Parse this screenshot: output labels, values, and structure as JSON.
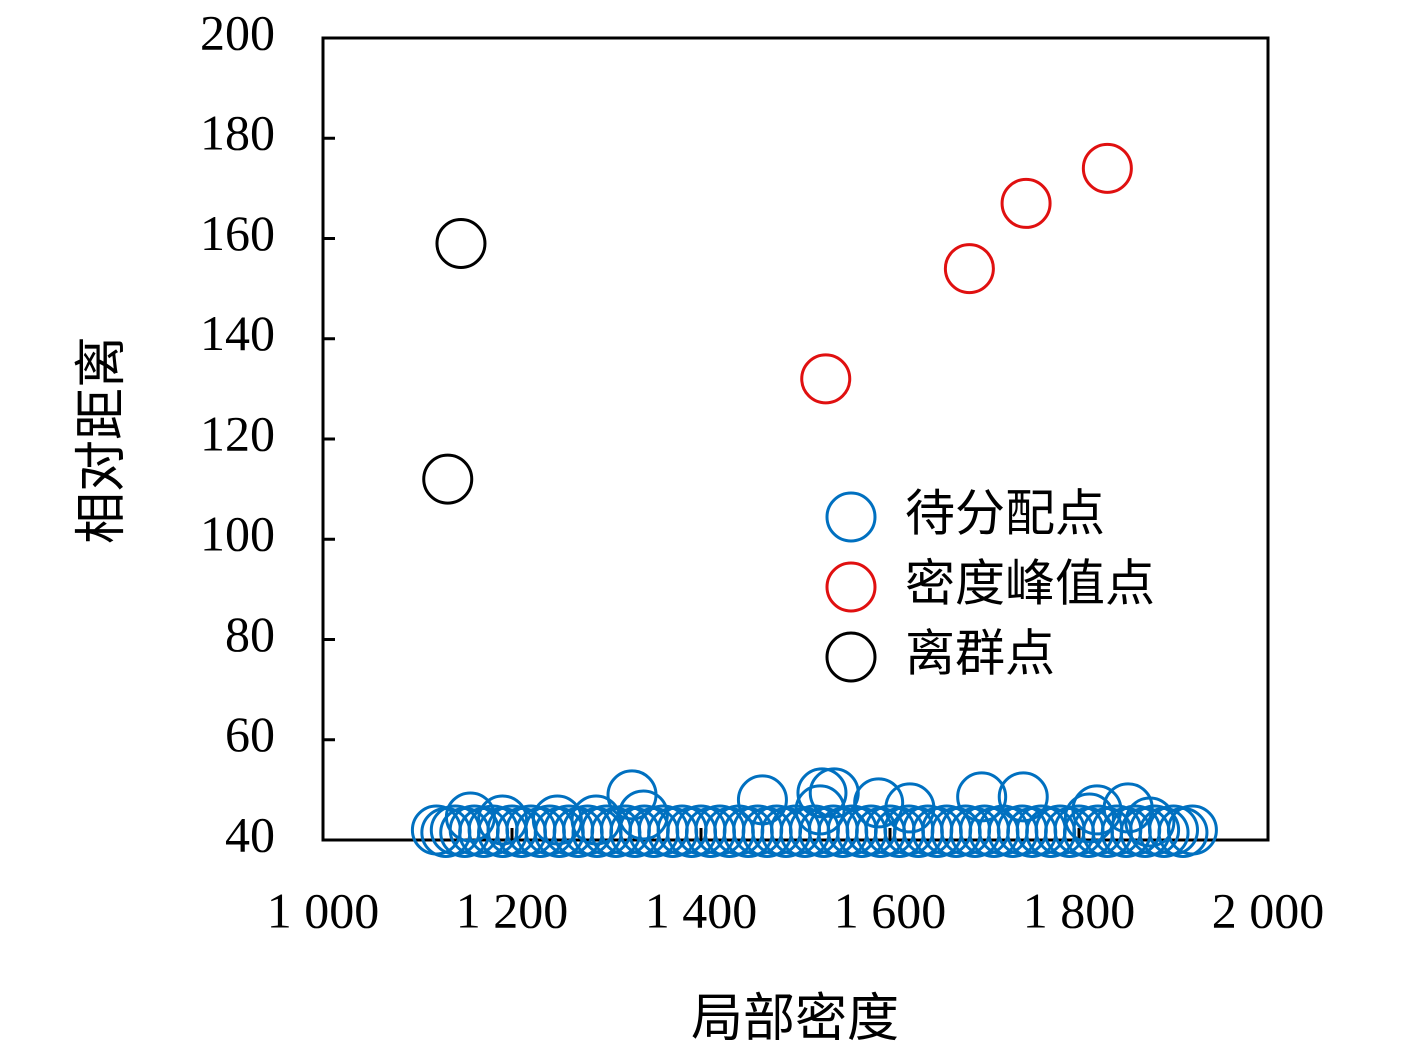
{
  "chart_data": {
    "type": "scatter",
    "xlabel": "局部密度",
    "ylabel": "相对距离",
    "xlim": [
      1000,
      2000
    ],
    "xticks": [
      {
        "value": 1000,
        "label": "1 000"
      },
      {
        "value": 1200,
        "label": "1 200"
      },
      {
        "value": 1400,
        "label": "1 400"
      },
      {
        "value": 1600,
        "label": "1 600"
      },
      {
        "value": 1800,
        "label": "1 800"
      },
      {
        "value": 2000,
        "label": "2 000"
      }
    ],
    "ylim": [
      40,
      200
    ],
    "yticks": [
      40,
      60,
      80,
      100,
      120,
      140,
      160,
      180,
      200
    ],
    "legend": "right",
    "series": [
      {
        "name": "待分配点",
        "color": "#0070c0",
        "x": [
          1156,
          1190,
          1248,
          1289,
          1327,
          1339,
          1465,
          1528,
          1541,
          1526,
          1588,
          1621,
          1697,
          1741,
          1819,
          1852,
          1811,
          1875,
          1120,
          1140,
          1160,
          1180,
          1200,
          1220,
          1240,
          1260,
          1280,
          1300,
          1320,
          1340,
          1360,
          1380,
          1400,
          1420,
          1440,
          1460,
          1480,
          1500,
          1520,
          1540,
          1560,
          1580,
          1600,
          1620,
          1640,
          1660,
          1680,
          1700,
          1720,
          1740,
          1760,
          1780,
          1800,
          1820,
          1840,
          1860,
          1880,
          1900,
          1920,
          1130,
          1150,
          1170,
          1190,
          1210,
          1230,
          1250,
          1270,
          1290,
          1310,
          1330,
          1350,
          1370,
          1390,
          1410,
          1430,
          1450,
          1470,
          1490,
          1510,
          1530,
          1550,
          1570,
          1590,
          1610,
          1630,
          1650,
          1670,
          1690,
          1710,
          1730,
          1750,
          1770,
          1790,
          1810,
          1830,
          1850,
          1870,
          1890,
          1910
        ],
        "values": [
          44.6,
          44,
          44,
          44,
          49,
          45,
          48,
          49.4,
          49.4,
          46,
          47.4,
          46.4,
          48.6,
          48.6,
          46,
          46.4,
          44.4,
          43.6,
          42,
          42,
          42,
          42,
          42,
          42,
          42,
          42,
          42,
          42,
          42,
          42,
          42,
          42,
          42,
          42,
          42,
          42,
          42,
          42,
          42,
          42,
          42,
          42,
          42,
          42,
          42,
          42,
          42,
          42,
          42,
          42,
          42,
          42,
          42,
          42,
          42,
          42,
          42,
          42,
          42,
          41.5,
          41.5,
          41.5,
          41.5,
          41.5,
          41.5,
          41.5,
          41.5,
          41.5,
          41.5,
          41.5,
          41.5,
          41.5,
          41.5,
          41.5,
          41.5,
          41.5,
          41.5,
          41.5,
          41.5,
          41.5,
          41.5,
          41.5,
          41.5,
          41.5,
          41.5,
          41.5,
          41.5,
          41.5,
          41.5,
          41.5,
          41.5,
          41.5,
          41.5,
          41.5,
          41.5,
          41.5,
          41.5,
          41.5,
          41.5
        ]
      },
      {
        "name": "密度峰值点",
        "color": "#e01010",
        "x": [
          1532,
          1684,
          1744,
          1830
        ],
        "values": [
          132,
          154,
          167,
          174
        ]
      },
      {
        "name": "离群点",
        "color": "#000000",
        "x": [
          1146,
          1132
        ],
        "values": [
          159,
          112
        ]
      }
    ]
  }
}
